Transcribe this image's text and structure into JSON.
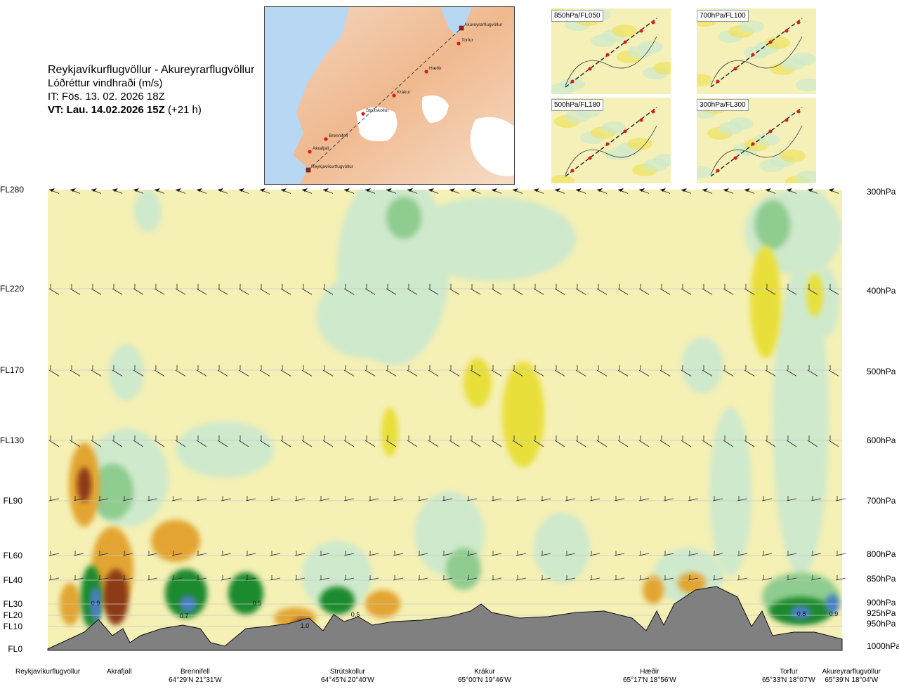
{
  "header": {
    "title": "Reykjavíkurflugvöllur - Akureyrarflugvöllur",
    "subtitle": "Lóðréttur vindhraði (m/s)",
    "init_time": "IT: Fös. 13. 02. 2026 18Z",
    "valid_time": "VT: Lau. 14.02.2026 15Z",
    "lead_time": "(+21 h)"
  },
  "route_map": {
    "waypoints": [
      "Akureyrarflugvöllur",
      "Torfur",
      "Hæðir",
      "Krákur",
      "Strútskollur",
      "Brennifell",
      "Akrafjall",
      "Reykjavíkurflugvöllur"
    ]
  },
  "mini_maps": [
    {
      "label": "850hPa/FL050"
    },
    {
      "label": "700hPa/FL100"
    },
    {
      "label": "500hPa/FL180"
    },
    {
      "label": "300hPa/FL300"
    }
  ],
  "colors": {
    "background_field": "#f5f0b4",
    "light_green": "#cfe9cc",
    "mid_green": "#8fcc8f",
    "dark_green": "#1e8a2e",
    "blue": "#4a7fc6",
    "yellow": "#e9df3a",
    "orange": "#e3a531",
    "brown": "#8c3a12",
    "terrain": "#808080"
  },
  "chart_data": {
    "type": "heatmap",
    "title": "Lóðréttur vindhraði (m/s)",
    "y_left_ticks": [
      "FL280",
      "FL220",
      "FL170",
      "FL130",
      "FL90",
      "FL60",
      "FL40",
      "FL30",
      "FL20",
      "FL10",
      "FL0"
    ],
    "y_right_ticks": [
      "300hPa",
      "400hPa",
      "500hPa",
      "600hPa",
      "700hPa",
      "800hPa",
      "850hPa",
      "900hPa",
      "925hPa",
      "950hPa",
      "1000hPa"
    ],
    "x_locations": [
      {
        "name": "Reykjavíkurflugvöllur",
        "coord": ""
      },
      {
        "name": "Akrafjall",
        "coord": ""
      },
      {
        "name": "Brennifell",
        "coord": "64°29'N 21°31'W"
      },
      {
        "name": "Strútskollur",
        "coord": "64°45'N 20°40'W"
      },
      {
        "name": "Krákur",
        "coord": "65°00'N 19°46'W"
      },
      {
        "name": "Hæðir",
        "coord": "65°17'N 18°56'W"
      },
      {
        "name": "Torfur",
        "coord": "65°33'N 18°07'W"
      },
      {
        "name": "Akureyrarflugvöllur",
        "coord": "65°39'N 18°04'W"
      }
    ],
    "contour_labels": [
      "0.9",
      "0.7",
      "0.5",
      "1.0",
      "0.5",
      "0.8",
      "0.9"
    ],
    "value_range": [
      -1.0,
      1.0
    ],
    "grid": true
  }
}
